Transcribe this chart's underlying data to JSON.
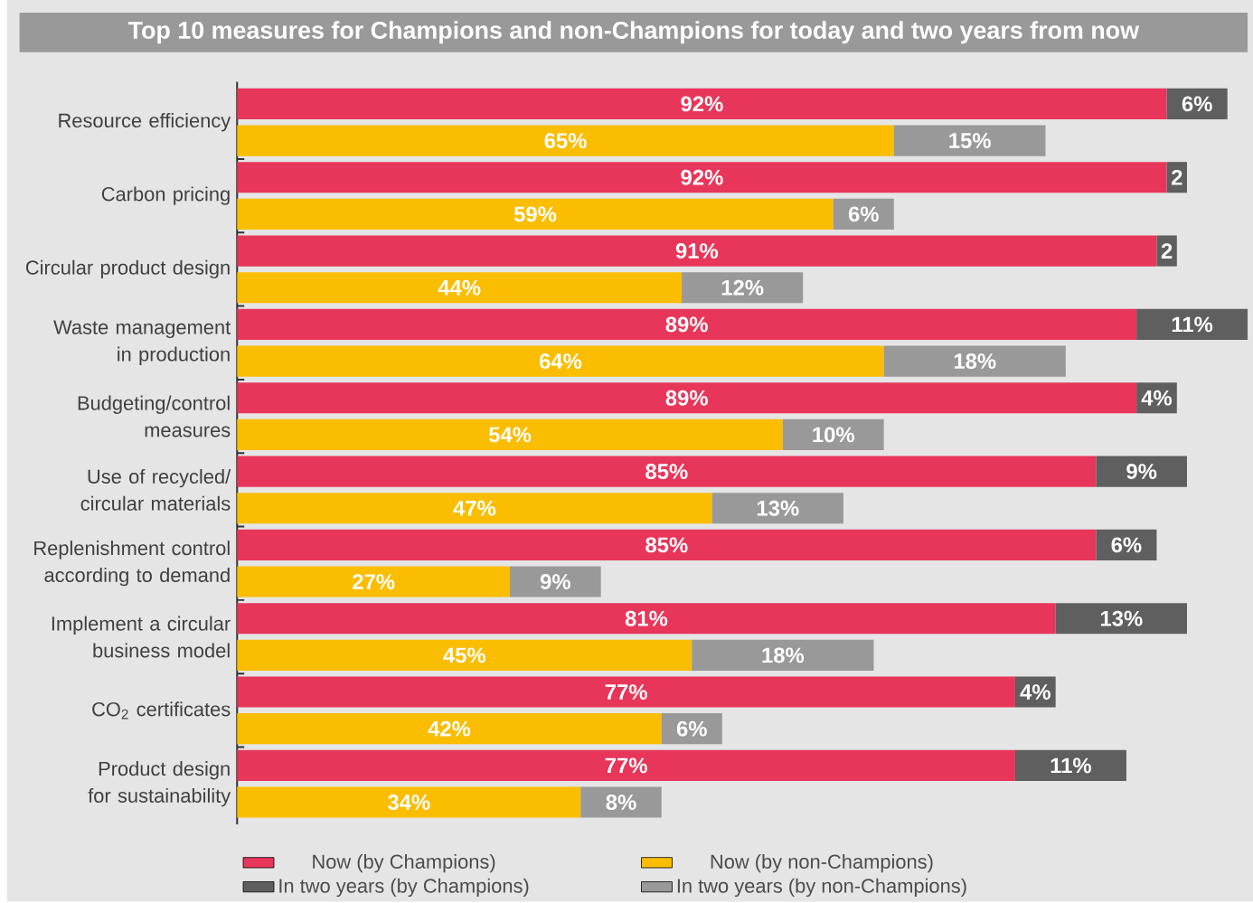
{
  "chart_data": {
    "type": "bar",
    "orientation": "horizontal",
    "stacked": true,
    "tick_labels": "y",
    "legend": "bottom",
    "xlim": [
      0,
      100
    ],
    "title": "Top 10 measures for Champions and non-Champions for today and two years from now",
    "categories": [
      "Resource efficiency",
      null,
      "Carbon pricing",
      null,
      "Circular product design",
      null,
      "Waste management in production",
      null,
      "Budgeting/control measures",
      null,
      "Use of recycled/ circular materials",
      null,
      "Replenishment control according to demand",
      null,
      "Implement a circular business model",
      null,
      "CO$_{2}$ certificates",
      null,
      "Product design for sustainability",
      null
    ],
    "series": [
      {
        "name": "Now (by Champions)",
        "color": "#e8365a",
        "values": [
          92,
          null,
          92,
          null,
          91,
          null,
          89,
          null,
          89,
          null,
          85,
          null,
          85,
          null,
          81,
          null,
          77,
          null,
          77,
          null
        ],
        "value_labels": [
          "92%",
          null,
          "92%",
          null,
          "91%",
          null,
          "89%",
          null,
          "89%",
          null,
          "85%",
          null,
          "85%",
          null,
          "81%",
          null,
          "77%",
          null,
          "77%",
          null
        ]
      },
      {
        "name": "In two years (by Champions)",
        "color": "#5f5f5f",
        "values": [
          6,
          null,
          2,
          null,
          2,
          null,
          11,
          null,
          4,
          null,
          9,
          null,
          6,
          null,
          13,
          null,
          4,
          null,
          11,
          null
        ],
        "value_labels": [
          "6%",
          null,
          "2",
          null,
          "2",
          null,
          "11%",
          null,
          "4%",
          null,
          "9%",
          null,
          "6%",
          null,
          "13%",
          null,
          "4%",
          null,
          "11%",
          null
        ]
      },
      {
        "name": "Now (by non-Champions)",
        "color": "#fbbd00",
        "values": [
          null,
          65,
          null,
          59,
          null,
          44,
          null,
          64,
          null,
          54,
          null,
          47,
          null,
          27,
          null,
          45,
          null,
          42,
          null,
          34
        ],
        "value_labels": [
          null,
          "65%",
          null,
          "59%",
          null,
          "44%",
          null,
          "64%",
          null,
          "54%",
          null,
          "47%",
          null,
          "27%",
          null,
          "45%",
          null,
          "42%",
          null,
          "34%"
        ]
      },
      {
        "name": "In two years (by non-Champions)",
        "color": "#999999",
        "values": [
          null,
          15,
          null,
          6,
          null,
          12,
          null,
          18,
          null,
          10,
          null,
          13,
          null,
          9,
          null,
          18,
          null,
          6,
          null,
          8
        ],
        "value_labels": [
          null,
          "15%",
          null,
          "6%",
          null,
          "12%",
          null,
          "18%",
          null,
          "10%",
          null,
          "13%",
          null,
          "9%",
          null,
          "18%",
          null,
          "6%",
          null,
          "8%"
        ]
      }
    ]
  }
}
